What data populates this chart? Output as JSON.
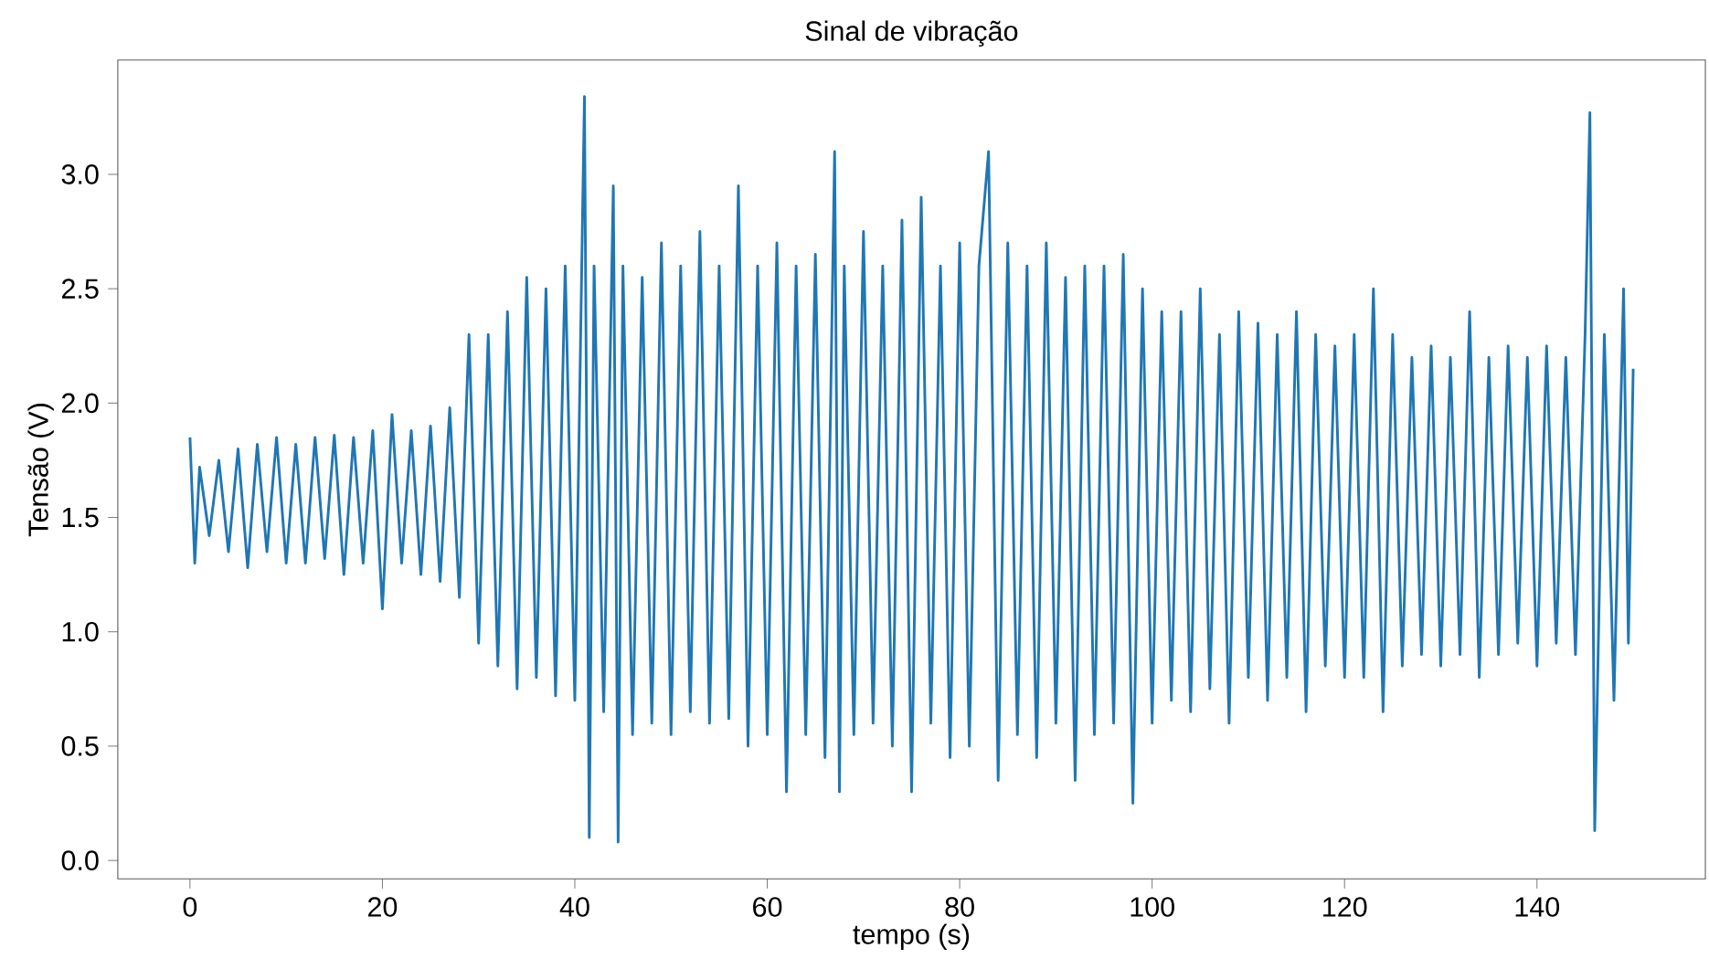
{
  "chart_data": {
    "type": "line",
    "title": "Sinal de vibração",
    "xlabel": "tempo (s)",
    "ylabel": "Tensão (V)",
    "xlim": [
      -7.5,
      157.5
    ],
    "ylim": [
      -0.08,
      3.5
    ],
    "xticks": [
      0,
      20,
      40,
      60,
      80,
      100,
      120,
      140
    ],
    "yticks": [
      {
        "value": 0,
        "label": "0.0"
      },
      {
        "value": 0.5,
        "label": "0.5"
      },
      {
        "value": 1,
        "label": "1.0"
      },
      {
        "value": 1.5,
        "label": "1.5"
      },
      {
        "value": 2,
        "label": "2.0"
      },
      {
        "value": 2.5,
        "label": "2.5"
      },
      {
        "value": 3,
        "label": "3.0"
      }
    ],
    "grid": false,
    "marker": "none",
    "line_style": "solid",
    "series": [
      {
        "color": "#1f77b4",
        "x": [
          0,
          0.5,
          1,
          2,
          3,
          4,
          5,
          6,
          7,
          8,
          9,
          10,
          11,
          12,
          13,
          14,
          15,
          16,
          17,
          18,
          19,
          20,
          21,
          22,
          23,
          24,
          25,
          26,
          27,
          28,
          29,
          30,
          31,
          32,
          33,
          34,
          35,
          36,
          37,
          38,
          39,
          40,
          41,
          41.5,
          42,
          43,
          44,
          44.5,
          45,
          46,
          47,
          48,
          49,
          50,
          51,
          52,
          53,
          54,
          55,
          56,
          57,
          58,
          59,
          60,
          61,
          62,
          63,
          64,
          65,
          66,
          67,
          67.5,
          68,
          69,
          70,
          71,
          72,
          73,
          74,
          75,
          76,
          77,
          78,
          79,
          80,
          81,
          82,
          83,
          84,
          85,
          86,
          87,
          88,
          89,
          90,
          91,
          92,
          93,
          94,
          95,
          96,
          97,
          98,
          99,
          100,
          101,
          102,
          103,
          104,
          105,
          106,
          107,
          108,
          109,
          110,
          111,
          112,
          113,
          114,
          115,
          116,
          117,
          118,
          119,
          120,
          121,
          122,
          123,
          124,
          125,
          126,
          127,
          128,
          129,
          130,
          131,
          132,
          133,
          134,
          135,
          136,
          137,
          138,
          139,
          140,
          141,
          142,
          143,
          144,
          145,
          145.5,
          146,
          147,
          148,
          149,
          149.5,
          150
        ],
        "values": [
          1.85,
          1.3,
          1.72,
          1.42,
          1.75,
          1.35,
          1.8,
          1.28,
          1.82,
          1.35,
          1.85,
          1.3,
          1.82,
          1.3,
          1.85,
          1.32,
          1.86,
          1.25,
          1.85,
          1.3,
          1.88,
          1.1,
          1.95,
          1.3,
          1.88,
          1.25,
          1.9,
          1.22,
          1.98,
          1.15,
          2.3,
          0.95,
          2.3,
          0.85,
          2.4,
          0.75,
          2.55,
          0.8,
          2.5,
          0.72,
          2.6,
          0.7,
          3.34,
          0.1,
          2.6,
          0.65,
          2.95,
          0.08,
          2.6,
          0.55,
          2.55,
          0.6,
          2.7,
          0.55,
          2.6,
          0.65,
          2.75,
          0.6,
          2.6,
          0.62,
          2.95,
          0.5,
          2.6,
          0.55,
          2.7,
          0.3,
          2.6,
          0.55,
          2.65,
          0.45,
          3.1,
          0.3,
          2.6,
          0.55,
          2.75,
          0.6,
          2.6,
          0.5,
          2.8,
          0.3,
          2.9,
          0.6,
          2.6,
          0.45,
          2.7,
          0.5,
          2.6,
          3.1,
          0.35,
          2.7,
          0.55,
          2.6,
          0.45,
          2.7,
          0.6,
          2.55,
          0.35,
          2.6,
          0.55,
          2.6,
          0.6,
          2.65,
          0.25,
          2.5,
          0.6,
          2.4,
          0.7,
          2.4,
          0.65,
          2.5,
          0.75,
          2.3,
          0.6,
          2.4,
          0.8,
          2.35,
          0.7,
          2.3,
          0.8,
          2.4,
          0.65,
          2.3,
          0.85,
          2.25,
          0.8,
          2.3,
          0.8,
          2.5,
          0.65,
          2.3,
          0.85,
          2.2,
          0.9,
          2.25,
          0.85,
          2.2,
          0.9,
          2.4,
          0.8,
          2.2,
          0.9,
          2.25,
          0.95,
          2.2,
          0.85,
          2.25,
          0.95,
          2.2,
          0.9,
          2.3,
          3.27,
          0.13,
          2.3,
          0.7,
          2.5,
          0.95,
          2.15
        ]
      }
    ]
  }
}
